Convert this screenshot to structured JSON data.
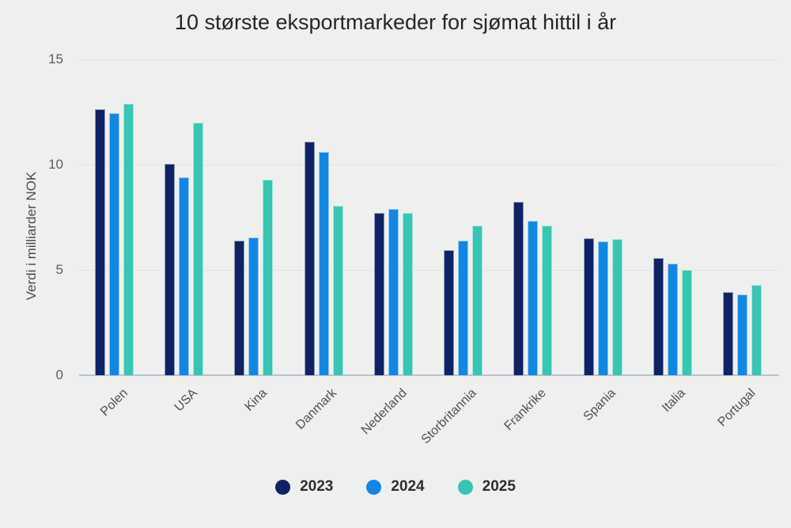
{
  "chart_data": {
    "type": "bar",
    "title": "10 største eksportmarkeder for sjømat hittil i år",
    "xlabel": "",
    "ylabel": "Verdi i milliarder NOK",
    "categories": [
      "Polen",
      "USA",
      "Kina",
      "Danmark",
      "Nederland",
      "Storbritannia",
      "Frankrike",
      "Spania",
      "Italia",
      "Portugal"
    ],
    "series": [
      {
        "name": "2023",
        "color": "#0f2266",
        "values": [
          12.65,
          10.05,
          6.4,
          11.1,
          7.7,
          5.95,
          8.25,
          6.5,
          5.55,
          3.95
        ]
      },
      {
        "name": "2024",
        "color": "#1287e2",
        "values": [
          12.45,
          9.4,
          6.55,
          10.6,
          7.9,
          6.4,
          7.35,
          6.35,
          5.3,
          3.85
        ]
      },
      {
        "name": "2025",
        "color": "#38c5b3",
        "values": [
          12.9,
          12.0,
          9.3,
          8.05,
          7.7,
          7.1,
          7.1,
          6.45,
          5.0,
          4.3
        ]
      }
    ],
    "yticks": [
      0,
      5,
      10,
      15
    ],
    "ylim": [
      0,
      15
    ],
    "grid": true,
    "legend_position": "bottom"
  },
  "colors": {
    "background": "#eef0ed",
    "gridline": "#e1e4e0",
    "axis_line": "#b9c0d4",
    "title_text": "#262626",
    "tick_text": "#5c5c5c",
    "x_label_text": "#4f4f4f",
    "y_title_text": "#4a4a4a",
    "legend_text": "#2e2e2e"
  }
}
